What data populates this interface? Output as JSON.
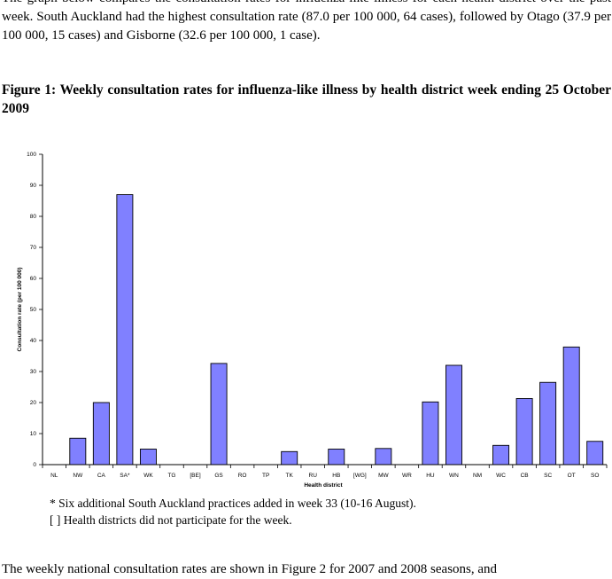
{
  "intro_paragraph": "The graph below compares the consultation rates for influenza-like illness for each health district over the past week. South Auckland had the highest consultation rate (87.0 per 100 000, 64 cases), followed by Otago (37.9 per 100 000, 15 cases) and Gisborne (32.6 per 100 000, 1 case).",
  "figure_title": "Figure 1: Weekly consultation rates for influenza-like illness by health district week ending 25 October 2009",
  "chart_data": {
    "type": "bar",
    "xlabel": "Health district",
    "ylabel": "Consultation rate (per 100 000)",
    "ylim": [
      0,
      100
    ],
    "yticks": [
      0,
      10,
      20,
      30,
      40,
      50,
      60,
      70,
      80,
      90,
      100
    ],
    "grid": false,
    "categories": [
      "NL",
      "NW",
      "CA",
      "SA*",
      "WK",
      "TG",
      "[BE]",
      "GS",
      "RO",
      "TP",
      "TK",
      "RU",
      "HB",
      "[WG]",
      "MW",
      "WR",
      "HU",
      "WN",
      "NM",
      "WC",
      "CB",
      "SC",
      "OT",
      "SO"
    ],
    "values": [
      0,
      8.5,
      20.0,
      87.0,
      5.0,
      0,
      0,
      32.6,
      0,
      0,
      4.2,
      0,
      5.0,
      0,
      5.2,
      0,
      20.2,
      32.0,
      0,
      6.2,
      21.3,
      26.5,
      37.9,
      7.5
    ],
    "bar_color": "#8080ff"
  },
  "notes": [
    "* Six additional South Auckland practices added in week 33 (10-16 August).",
    "[ ] Health districts did not participate for the week."
  ],
  "bottom_paragraph": "The weekly national consultation rates are shown in Figure 2 for 2007 and 2008 seasons, and"
}
